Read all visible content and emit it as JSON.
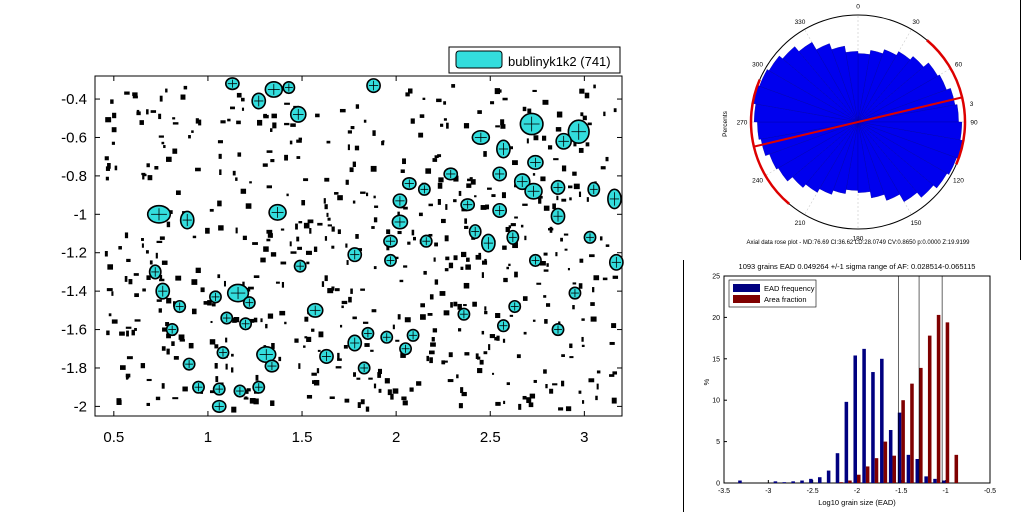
{
  "chart_data": [
    {
      "type": "scatter",
      "title": "",
      "xlabel": "",
      "ylabel": "",
      "xlim": [
        0.4,
        3.2
      ],
      "ylim": [
        -2.05,
        -0.28
      ],
      "x_ticks": [
        "0.5",
        "1",
        "1.5",
        "2",
        "2.5",
        "3"
      ],
      "y_ticks": [
        "-0.4",
        "-0.6",
        "-0.8",
        "-1",
        "-1.2",
        "-1.4",
        "-1.6",
        "-1.8",
        "-2"
      ],
      "legend": {
        "label": "bublinyk1k2 (741)",
        "color": "#33dddd",
        "position": "top-right"
      },
      "series": [
        {
          "name": "bublinyk1k2 (741)",
          "fill_color": "#33dddd",
          "edge_color": "#000000",
          "grains": [
            {
              "x": 1.13,
              "y": -0.32,
              "w": 0.07,
              "h": 0.06
            },
            {
              "x": 1.35,
              "y": -0.35,
              "w": 0.09,
              "h": 0.08
            },
            {
              "x": 1.43,
              "y": -0.34,
              "w": 0.06,
              "h": 0.06
            },
            {
              "x": 1.88,
              "y": -0.33,
              "w": 0.07,
              "h": 0.07
            },
            {
              "x": 1.27,
              "y": -0.41,
              "w": 0.07,
              "h": 0.08
            },
            {
              "x": 1.48,
              "y": -0.48,
              "w": 0.08,
              "h": 0.08
            },
            {
              "x": 2.72,
              "y": -0.53,
              "w": 0.12,
              "h": 0.11
            },
            {
              "x": 2.97,
              "y": -0.57,
              "w": 0.11,
              "h": 0.12
            },
            {
              "x": 2.89,
              "y": -0.62,
              "w": 0.08,
              "h": 0.08
            },
            {
              "x": 2.45,
              "y": -0.6,
              "w": 0.09,
              "h": 0.07
            },
            {
              "x": 2.57,
              "y": -0.66,
              "w": 0.07,
              "h": 0.09
            },
            {
              "x": 2.74,
              "y": -0.73,
              "w": 0.08,
              "h": 0.07
            },
            {
              "x": 2.67,
              "y": -0.83,
              "w": 0.08,
              "h": 0.08
            },
            {
              "x": 2.73,
              "y": -0.88,
              "w": 0.09,
              "h": 0.08
            },
            {
              "x": 2.55,
              "y": -0.79,
              "w": 0.07,
              "h": 0.07
            },
            {
              "x": 2.86,
              "y": -0.86,
              "w": 0.07,
              "h": 0.07
            },
            {
              "x": 3.05,
              "y": -0.87,
              "w": 0.06,
              "h": 0.07
            },
            {
              "x": 2.29,
              "y": -0.79,
              "w": 0.07,
              "h": 0.06
            },
            {
              "x": 2.07,
              "y": -0.84,
              "w": 0.07,
              "h": 0.06
            },
            {
              "x": 2.02,
              "y": -0.93,
              "w": 0.07,
              "h": 0.07
            },
            {
              "x": 2.15,
              "y": -0.87,
              "w": 0.06,
              "h": 0.06
            },
            {
              "x": 2.38,
              "y": -0.95,
              "w": 0.07,
              "h": 0.06
            },
            {
              "x": 2.55,
              "y": -0.98,
              "w": 0.07,
              "h": 0.07
            },
            {
              "x": 3.16,
              "y": -0.92,
              "w": 0.07,
              "h": 0.1
            },
            {
              "x": 0.74,
              "y": -1.0,
              "w": 0.12,
              "h": 0.09
            },
            {
              "x": 0.89,
              "y": -1.03,
              "w": 0.07,
              "h": 0.09
            },
            {
              "x": 1.37,
              "y": -0.99,
              "w": 0.09,
              "h": 0.08
            },
            {
              "x": 2.02,
              "y": -1.04,
              "w": 0.08,
              "h": 0.07
            },
            {
              "x": 2.86,
              "y": -1.01,
              "w": 0.07,
              "h": 0.08
            },
            {
              "x": 2.42,
              "y": -1.09,
              "w": 0.06,
              "h": 0.07
            },
            {
              "x": 1.97,
              "y": -1.14,
              "w": 0.07,
              "h": 0.06
            },
            {
              "x": 2.16,
              "y": -1.14,
              "w": 0.06,
              "h": 0.06
            },
            {
              "x": 2.49,
              "y": -1.15,
              "w": 0.07,
              "h": 0.09
            },
            {
              "x": 2.62,
              "y": -1.12,
              "w": 0.06,
              "h": 0.07
            },
            {
              "x": 3.03,
              "y": -1.12,
              "w": 0.06,
              "h": 0.06
            },
            {
              "x": 1.78,
              "y": -1.21,
              "w": 0.07,
              "h": 0.07
            },
            {
              "x": 1.97,
              "y": -1.24,
              "w": 0.06,
              "h": 0.06
            },
            {
              "x": 1.49,
              "y": -1.27,
              "w": 0.06,
              "h": 0.06
            },
            {
              "x": 2.74,
              "y": -1.24,
              "w": 0.06,
              "h": 0.06
            },
            {
              "x": 3.17,
              "y": -1.25,
              "w": 0.07,
              "h": 0.08
            },
            {
              "x": 0.72,
              "y": -1.3,
              "w": 0.06,
              "h": 0.07
            },
            {
              "x": 0.76,
              "y": -1.4,
              "w": 0.07,
              "h": 0.08
            },
            {
              "x": 0.85,
              "y": -1.48,
              "w": 0.06,
              "h": 0.06
            },
            {
              "x": 1.16,
              "y": -1.41,
              "w": 0.11,
              "h": 0.09
            },
            {
              "x": 1.04,
              "y": -1.43,
              "w": 0.06,
              "h": 0.06
            },
            {
              "x": 1.22,
              "y": -1.46,
              "w": 0.06,
              "h": 0.06
            },
            {
              "x": 1.57,
              "y": -1.5,
              "w": 0.08,
              "h": 0.07
            },
            {
              "x": 2.95,
              "y": -1.41,
              "w": 0.06,
              "h": 0.06
            },
            {
              "x": 2.63,
              "y": -1.48,
              "w": 0.06,
              "h": 0.06
            },
            {
              "x": 2.36,
              "y": -1.52,
              "w": 0.06,
              "h": 0.06
            },
            {
              "x": 1.1,
              "y": -1.54,
              "w": 0.06,
              "h": 0.06
            },
            {
              "x": 1.2,
              "y": -1.57,
              "w": 0.06,
              "h": 0.06
            },
            {
              "x": 2.57,
              "y": -1.58,
              "w": 0.06,
              "h": 0.06
            },
            {
              "x": 2.86,
              "y": -1.6,
              "w": 0.06,
              "h": 0.06
            },
            {
              "x": 0.81,
              "y": -1.6,
              "w": 0.06,
              "h": 0.06
            },
            {
              "x": 1.85,
              "y": -1.62,
              "w": 0.06,
              "h": 0.06
            },
            {
              "x": 1.95,
              "y": -1.64,
              "w": 0.06,
              "h": 0.06
            },
            {
              "x": 2.09,
              "y": -1.63,
              "w": 0.06,
              "h": 0.06
            },
            {
              "x": 1.78,
              "y": -1.67,
              "w": 0.07,
              "h": 0.08
            },
            {
              "x": 2.05,
              "y": -1.7,
              "w": 0.06,
              "h": 0.06
            },
            {
              "x": 1.31,
              "y": -1.73,
              "w": 0.1,
              "h": 0.08
            },
            {
              "x": 1.08,
              "y": -1.72,
              "w": 0.06,
              "h": 0.06
            },
            {
              "x": 1.63,
              "y": -1.74,
              "w": 0.07,
              "h": 0.07
            },
            {
              "x": 1.83,
              "y": -1.8,
              "w": 0.06,
              "h": 0.06
            },
            {
              "x": 0.9,
              "y": -1.78,
              "w": 0.06,
              "h": 0.06
            },
            {
              "x": 1.34,
              "y": -1.79,
              "w": 0.07,
              "h": 0.06
            },
            {
              "x": 0.95,
              "y": -1.9,
              "w": 0.06,
              "h": 0.06
            },
            {
              "x": 1.06,
              "y": -1.91,
              "w": 0.06,
              "h": 0.06
            },
            {
              "x": 1.17,
              "y": -1.92,
              "w": 0.06,
              "h": 0.06
            },
            {
              "x": 1.27,
              "y": -1.9,
              "w": 0.06,
              "h": 0.06
            },
            {
              "x": 1.06,
              "y": -2.0,
              "w": 0.07,
              "h": 0.06
            }
          ]
        }
      ]
    },
    {
      "type": "polar-rose",
      "angle_ticks": [
        "0",
        "30",
        "60",
        "3",
        "90",
        "120",
        "150",
        "180",
        "210",
        "240",
        "270",
        "300",
        "330"
      ],
      "ylabel": "Percents",
      "caption": "Axial data rose plot - MD:76.69 CI:36.62 LD:28.0749 CV:0.8650 p:0.0000 Z:19.9199",
      "fill_color": "#0000ee",
      "mean_direction_deg": 76.69,
      "confidence_color": "#dd0000",
      "confidence_arc_deg": [
        40.07,
        113.31
      ],
      "bin_width_deg": 10,
      "radii_relative": [
        0.64,
        0.68,
        0.72,
        0.76,
        0.8,
        0.86,
        0.88,
        0.92,
        0.94,
        0.97,
        1.0,
        0.98,
        0.96,
        0.92,
        0.86,
        0.78,
        0.72,
        0.66
      ]
    },
    {
      "type": "bar",
      "title": "1093 grains EAD 0.049264 +/-1 sigma range of AF: 0.028514-0.065115",
      "xlabel": "Log10 grain size (EAD)",
      "ylabel": "%",
      "xlim": [
        -3.5,
        -0.5
      ],
      "ylim": [
        0,
        25
      ],
      "x_ticks": [
        "-3.5",
        "-3",
        "-2.5",
        "-2",
        "-1.5",
        "-1",
        "-0.5"
      ],
      "y_ticks": [
        "0",
        "5",
        "10",
        "15",
        "20",
        "25"
      ],
      "legend": {
        "entries": [
          "EAD frequency",
          "Area fraction"
        ],
        "position": "top-left"
      },
      "vlines": [
        -1.53,
        -1.3,
        -1.04
      ],
      "bin_centers": [
        -3.3,
        -3.2,
        -3.1,
        -3.0,
        -2.9,
        -2.8,
        -2.7,
        -2.6,
        -2.5,
        -2.4,
        -2.3,
        -2.2,
        -2.1,
        -2.0,
        -1.9,
        -1.8,
        -1.7,
        -1.6,
        -1.5,
        -1.4,
        -1.3,
        -1.2,
        -1.1,
        -1.0,
        -0.9
      ],
      "series": [
        {
          "name": "EAD frequency",
          "color": "#000080",
          "values": [
            0.3,
            0,
            0,
            0,
            0.2,
            0.1,
            0.2,
            0.3,
            0.5,
            0.7,
            1.5,
            3.6,
            9.8,
            15.4,
            16.2,
            13.4,
            15.0,
            6.4,
            8.5,
            3.4,
            2.9,
            0.8,
            0.5,
            0.3,
            0
          ]
        },
        {
          "name": "Area fraction",
          "color": "#7f0000",
          "values": [
            0,
            0,
            0,
            0,
            0,
            0,
            0,
            0,
            0,
            0,
            0,
            0.1,
            0.3,
            1.0,
            2.0,
            3.0,
            5.0,
            3.3,
            10.0,
            12.0,
            13.9,
            17.8,
            20.3,
            19.4,
            3.4
          ]
        }
      ]
    }
  ]
}
